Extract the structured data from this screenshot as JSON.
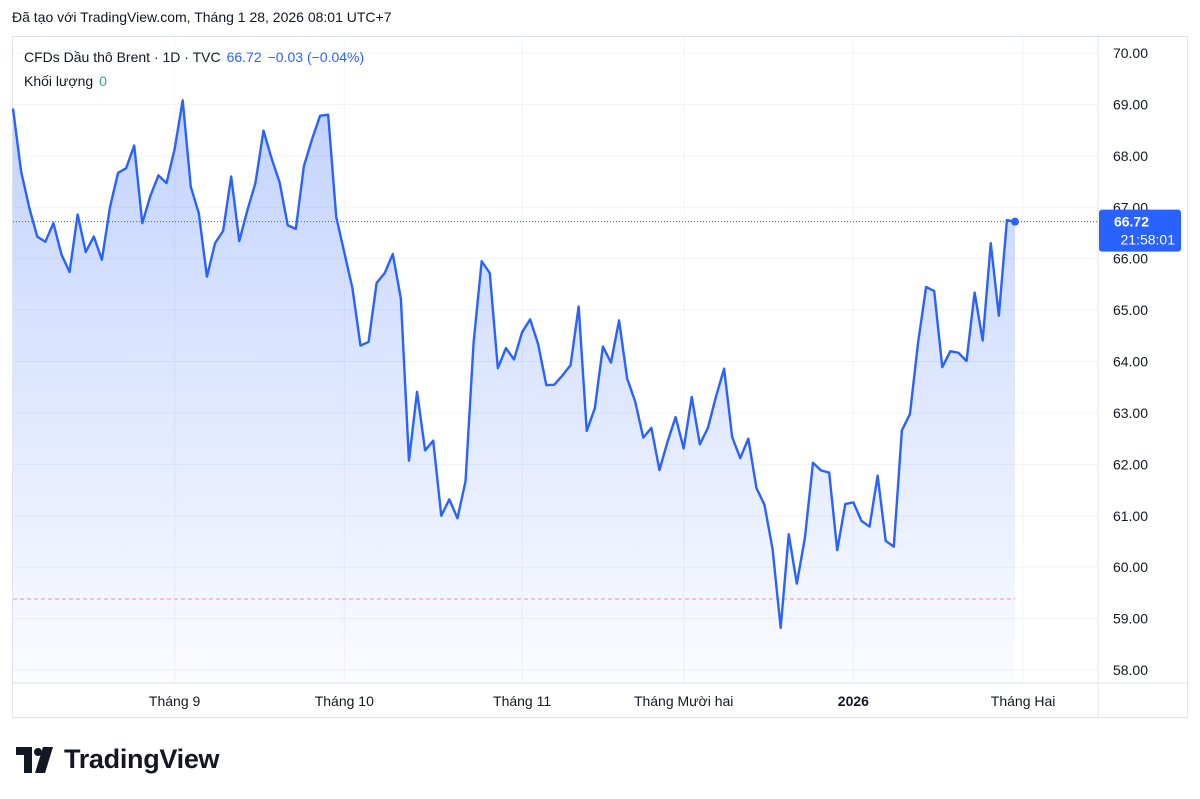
{
  "header": {
    "credit": "Đã tạo với TradingView.com, Tháng 1 28, 2026 08:01 UTC+7"
  },
  "legend": {
    "symbol": "CFDs Dầu thô Brent · 1D · TVC",
    "last": "66.72",
    "change": "−0.03 (−0.04%)",
    "volume_label": "Khối lượng",
    "volume_value": "0"
  },
  "price_badge": {
    "value": "66.72",
    "countdown": "21:58:01"
  },
  "logo": {
    "text": "TradingView",
    "icon": "tradingview-logo-icon"
  },
  "colors": {
    "line": "#2962ff",
    "fill": "#2962ff",
    "grid": "#f0f3fa",
    "axis_text": "#131722",
    "dashed_low": "#f7525f",
    "dashed_low2": "#22ab94"
  },
  "chart_data": {
    "type": "area",
    "title": "CFDs Dầu thô Brent · 1D · TVC",
    "xlabel": "",
    "ylabel": "",
    "ylim": [
      57.75,
      70.3
    ],
    "yticks": [
      70,
      69,
      68,
      67,
      66,
      65,
      64,
      63,
      62,
      61,
      60,
      59,
      58
    ],
    "ytick_labels": [
      "70.00",
      "69.00",
      "68.00",
      "67.00",
      "66.00",
      "65.00",
      "64.00",
      "63.00",
      "62.00",
      "61.00",
      "60.00",
      "59.00",
      "58.00"
    ],
    "xticks": [
      {
        "label": "Tháng 9",
        "index": 20,
        "bold": false
      },
      {
        "label": "Tháng 10",
        "index": 41,
        "bold": false
      },
      {
        "label": "Tháng 11",
        "index": 63,
        "bold": false
      },
      {
        "label": "Tháng Mười hai",
        "index": 83,
        "bold": false
      },
      {
        "label": "2026",
        "index": 104,
        "bold": true
      },
      {
        "label": "Tháng Hai",
        "index": 125,
        "bold": false
      }
    ],
    "last_price": 66.72,
    "dotted_price_line": 66.72,
    "dashed_level": 59.38,
    "y": [
      68.92,
      67.7,
      67.0,
      66.43,
      66.33,
      66.69,
      66.08,
      65.74,
      66.86,
      66.13,
      66.43,
      65.98,
      67.0,
      67.67,
      67.76,
      68.2,
      66.69,
      67.22,
      67.62,
      67.47,
      68.13,
      69.08,
      67.4,
      66.88,
      65.65,
      66.3,
      66.54,
      67.6,
      66.34,
      66.94,
      67.47,
      68.49,
      67.95,
      67.48,
      66.65,
      66.58,
      67.8,
      68.32,
      68.78,
      68.8,
      66.81,
      66.12,
      65.43,
      64.31,
      64.38,
      65.53,
      65.72,
      66.09,
      65.22,
      62.07,
      63.41,
      62.27,
      62.46,
      61.0,
      61.32,
      60.95,
      61.67,
      64.37,
      65.95,
      65.72,
      63.87,
      64.26,
      64.04,
      64.57,
      64.82,
      64.33,
      63.54,
      63.55,
      63.73,
      63.93,
      65.07,
      62.65,
      63.09,
      64.29,
      63.98,
      64.8,
      63.67,
      63.22,
      62.52,
      62.71,
      61.89,
      62.44,
      62.92,
      62.31,
      63.31,
      62.39,
      62.71,
      63.32,
      63.86,
      62.53,
      62.12,
      62.5,
      61.54,
      61.21,
      60.35,
      58.82,
      60.64,
      59.68,
      60.57,
      62.03,
      61.88,
      61.84,
      60.33,
      61.23,
      61.26,
      60.9,
      60.79,
      61.78,
      60.51,
      60.4,
      62.66,
      62.98,
      64.36,
      65.45,
      65.37,
      63.89,
      64.2,
      64.17,
      64.01,
      65.34,
      64.41,
      66.3,
      64.89,
      66.75,
      66.72
    ]
  }
}
